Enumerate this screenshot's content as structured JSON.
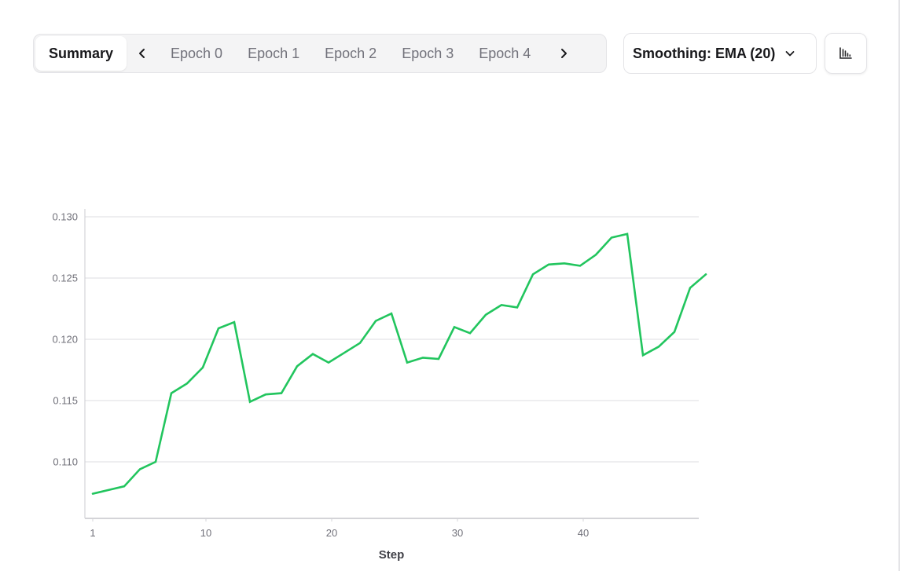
{
  "tabs": {
    "items": [
      {
        "label": "Summary",
        "active": true
      },
      {
        "label": "Epoch 0"
      },
      {
        "label": "Epoch 1"
      },
      {
        "label": "Epoch 2"
      },
      {
        "label": "Epoch 3"
      },
      {
        "label": "Epoch 4"
      }
    ],
    "prev_icon": "chevron-left-icon",
    "next_icon": "chevron-right-icon"
  },
  "smoothing": {
    "label": "Smoothing: EMA (20)",
    "icon": "chevron-down-icon"
  },
  "chart_type_button": {
    "icon": "bar-chart-icon"
  },
  "colors": {
    "line": "#22c55e",
    "grid": "#e4e4e7",
    "axis": "#d4d4d8",
    "tick_text": "#71717a"
  },
  "chart_data": {
    "type": "line",
    "title": "",
    "xlabel": "Step",
    "ylabel": "",
    "xticks": [
      1,
      10,
      20,
      30,
      40
    ],
    "yticks": [
      0.11,
      0.115,
      0.12,
      0.125,
      0.13
    ],
    "ytick_labels": [
      "0.110",
      "0.115",
      "0.120",
      "0.125",
      "0.130"
    ],
    "xlim": [
      0.4,
      50.3
    ],
    "ylim": [
      0.1055,
      0.1308
    ],
    "grid": true,
    "legend": null,
    "series": [
      {
        "name": "EMA (20)",
        "color": "#22c55e",
        "x": [
          1,
          2.25,
          3.5,
          4.75,
          6,
          7.25,
          8.5,
          9.75,
          11,
          12.25,
          13.5,
          14.75,
          16,
          17.25,
          18.5,
          19.75,
          21,
          22.25,
          23.5,
          24.75,
          26,
          27.25,
          28.5,
          29.75,
          31,
          32.25,
          33.5,
          34.75,
          36,
          37.25,
          38.5,
          39.75,
          41,
          42.25,
          43.5,
          44.75,
          46,
          47.25,
          48.5,
          49.75
        ],
        "values": [
          0.1074,
          0.1077,
          0.108,
          0.1094,
          0.11,
          0.1156,
          0.1164,
          0.1177,
          0.1209,
          0.1214,
          0.1149,
          0.1155,
          0.1156,
          0.1178,
          0.1188,
          0.1181,
          0.1189,
          0.1197,
          0.1215,
          0.1221,
          0.1181,
          0.1185,
          0.1184,
          0.121,
          0.1205,
          0.122,
          0.1228,
          0.1226,
          0.1253,
          0.1261,
          0.1262,
          0.126,
          0.1269,
          0.1283,
          0.1286,
          0.1187,
          0.1194,
          0.1206,
          0.1242,
          0.1253
        ]
      }
    ]
  }
}
